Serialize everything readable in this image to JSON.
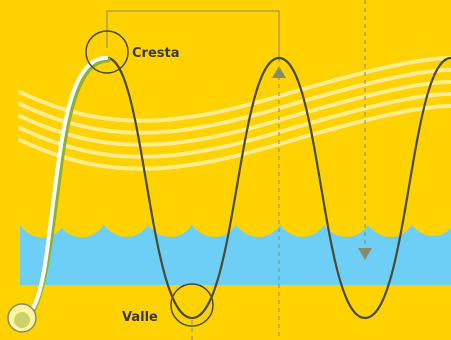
{
  "labels": {
    "crest": "Cresta",
    "trough": "Valle"
  },
  "colors": {
    "background": "#FFD200",
    "water": "#6ECFF6",
    "wave": "#4A4A35",
    "guide": "#8A8A68",
    "stripes": "#FFF1A8",
    "rope": "#FFFFFF",
    "rope_shadow": "#8FAF3A"
  }
}
